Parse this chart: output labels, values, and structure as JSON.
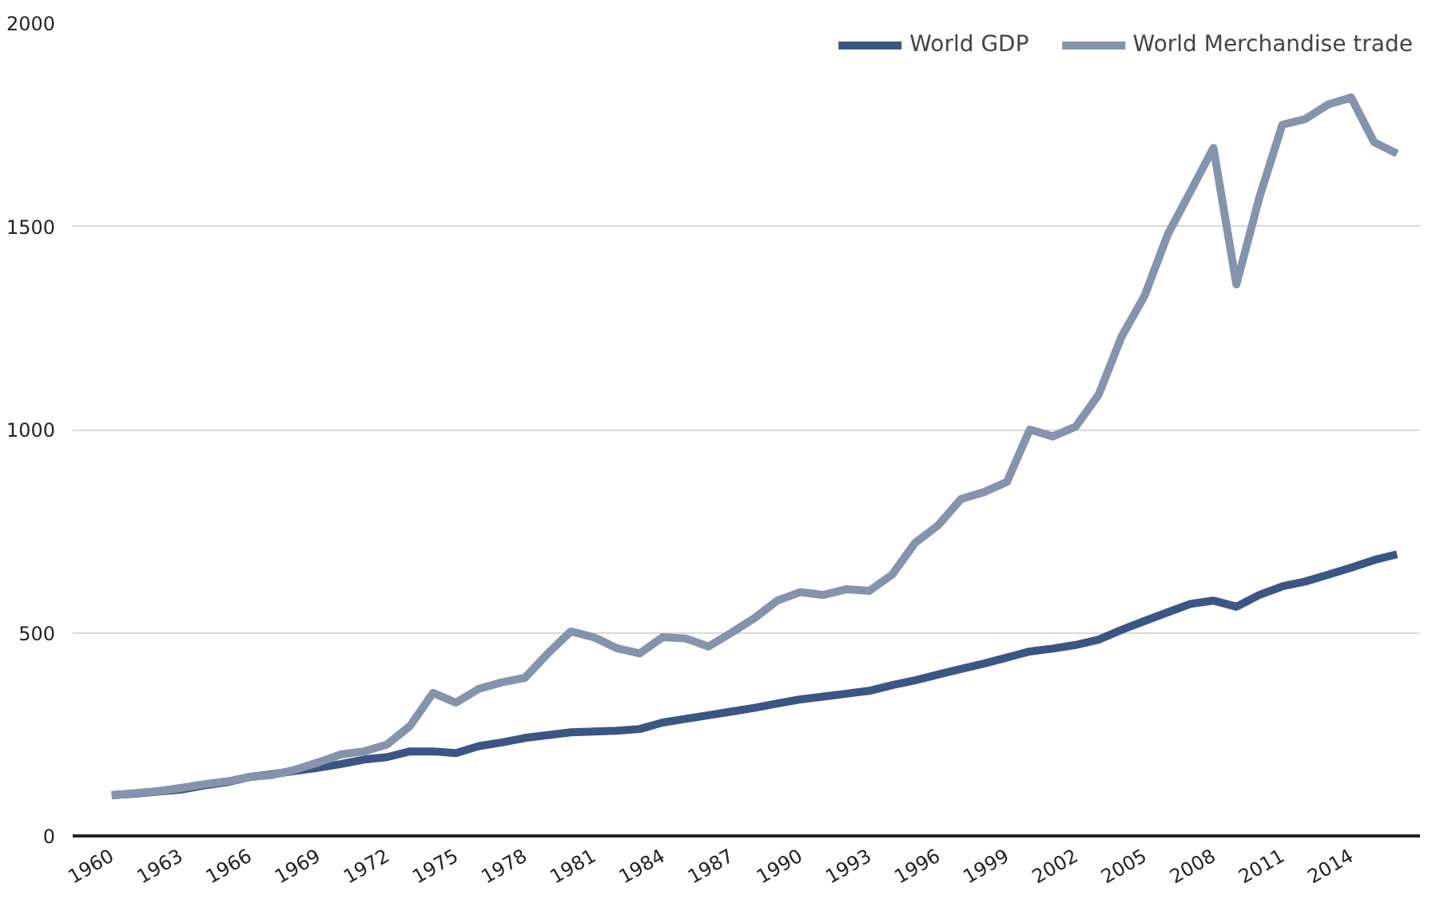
{
  "chart_data": {
    "type": "line",
    "x": [
      1960,
      1961,
      1962,
      1963,
      1964,
      1965,
      1966,
      1967,
      1968,
      1969,
      1970,
      1971,
      1972,
      1973,
      1974,
      1975,
      1976,
      1977,
      1978,
      1979,
      1980,
      1981,
      1982,
      1983,
      1984,
      1985,
      1986,
      1987,
      1988,
      1989,
      1990,
      1991,
      1992,
      1993,
      1994,
      1995,
      1996,
      1997,
      1998,
      1999,
      2000,
      2001,
      2002,
      2003,
      2004,
      2005,
      2006,
      2007,
      2008,
      2009,
      2010,
      2011,
      2012,
      2013,
      2014,
      2015,
      2016
    ],
    "series": [
      {
        "name": "World GDP",
        "color": "#3b5685",
        "values": [
          100,
          104,
          109,
          114,
          124,
          132,
          145,
          152,
          160,
          168,
          177,
          188,
          194,
          208,
          208,
          204,
          221,
          230,
          241,
          248,
          255,
          257,
          259,
          263,
          279,
          288,
          297,
          306,
          315,
          326,
          336,
          343,
          350,
          357,
          371,
          383,
          397,
          411,
          424,
          439,
          454,
          461,
          470,
          483,
          507,
          529,
          550,
          571,
          579,
          564,
          593,
          614,
          626,
          643,
          660,
          679,
          693
        ]
      },
      {
        "name": "World Merchandise trade",
        "color": "#8593ad",
        "values": [
          100,
          105,
          110,
          118,
          127,
          134,
          145,
          150,
          163,
          181,
          201,
          208,
          225,
          271,
          352,
          328,
          362,
          378,
          389,
          449,
          503,
          489,
          462,
          449,
          489,
          486,
          466,
          500,
          536,
          579,
          600,
          593,
          607,
          603,
          643,
          721,
          764,
          829,
          846,
          871,
          1000,
          983,
          1007,
          1086,
          1229,
          1329,
          1479,
          1586,
          1693,
          1357,
          1571,
          1750,
          1764,
          1800,
          1817,
          1707,
          1679
        ]
      }
    ],
    "xlim": [
      1958.3,
      2017
    ],
    "xticks": [
      1960,
      1963,
      1966,
      1969,
      1972,
      1975,
      1978,
      1981,
      1984,
      1987,
      1990,
      1993,
      1996,
      1999,
      2002,
      2005,
      2008,
      2011,
      2014
    ],
    "ylim": [
      0,
      2000
    ],
    "yticks": [
      0,
      500,
      1000,
      1500,
      2000
    ],
    "grid": "y",
    "legend": "top right",
    "line_style": "solid",
    "marker": "none"
  }
}
